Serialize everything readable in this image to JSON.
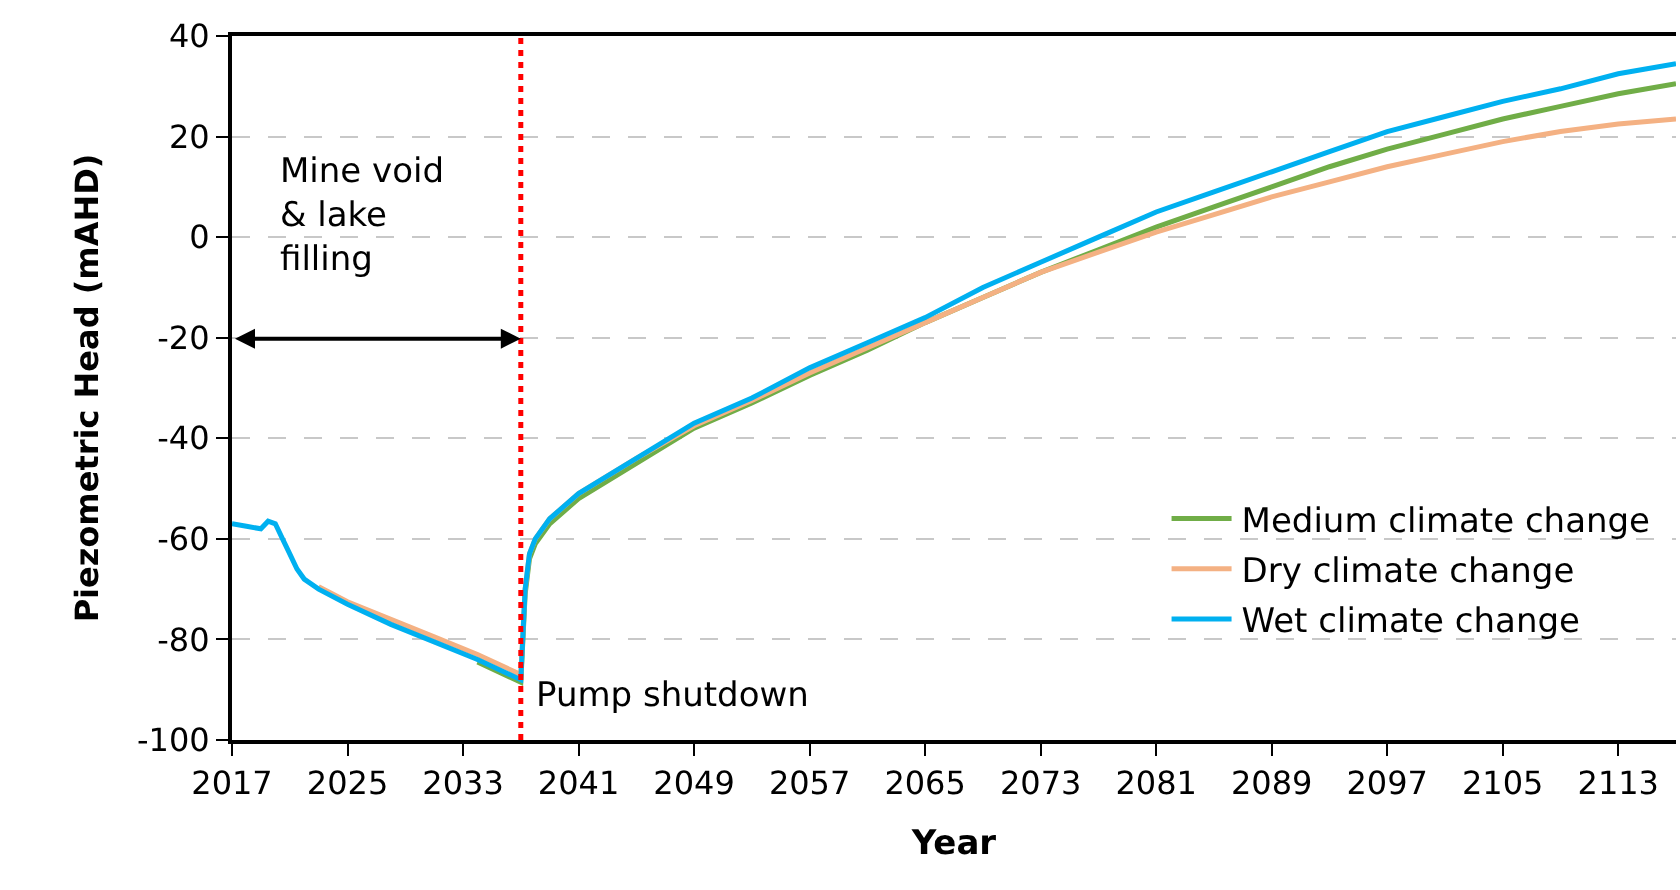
{
  "chart_data": {
    "type": "line",
    "xlabel": "Year",
    "ylabel": "Piezometric Head (mAHD)",
    "xlim": [
      2017,
      2117
    ],
    "xticks": [
      2017,
      2025,
      2033,
      2041,
      2049,
      2057,
      2065,
      2073,
      2081,
      2089,
      2097,
      2105,
      2113
    ],
    "ylim": [
      -100,
      40
    ],
    "yticks": [
      -100,
      -80,
      -60,
      -40,
      -20,
      0,
      20,
      40
    ],
    "grid": "y",
    "legend": "bottom right",
    "marker": "none",
    "line_style": "solid",
    "series": [
      {
        "name": "Medium climate change",
        "color": "#70ad47",
        "x": [
          2034,
          2037,
          2037.3,
          2037.6,
          2038,
          2039,
          2041,
          2045,
          2049,
          2053,
          2057,
          2061,
          2065,
          2069,
          2073,
          2077,
          2081,
          2085,
          2089,
          2093,
          2097,
          2101,
          2105,
          2109,
          2113,
          2117
        ],
        "values": [
          -84.5,
          -88.5,
          -71,
          -64,
          -61,
          -57,
          -52,
          -45,
          -38,
          -33,
          -27.5,
          -22.5,
          -17,
          -12,
          -7,
          -2.5,
          2,
          6,
          10,
          14,
          17.5,
          20.5,
          23.5,
          26,
          28.5,
          30.5
        ]
      },
      {
        "name": "Dry climate change",
        "color": "#f4b183",
        "x": [
          2023,
          2025,
          2028,
          2031,
          2034,
          2037,
          2037.3,
          2037.6,
          2038,
          2039,
          2041,
          2045,
          2049,
          2053,
          2057,
          2061,
          2065,
          2069,
          2073,
          2077,
          2081,
          2085,
          2089,
          2093,
          2097,
          2101,
          2105,
          2109,
          2113,
          2117
        ],
        "values": [
          -69.5,
          -72.5,
          -76,
          -79.5,
          -83,
          -87,
          -70,
          -63,
          -60,
          -56,
          -51,
          -44,
          -37.5,
          -32.5,
          -27,
          -22,
          -17,
          -12,
          -7,
          -3,
          1,
          4.5,
          8,
          11,
          14,
          16.5,
          19,
          21,
          22.5,
          23.5
        ]
      },
      {
        "name": "Wet climate change",
        "color": "#00b0f0",
        "x": [
          2017,
          2018,
          2019,
          2019.5,
          2020,
          2020.5,
          2021,
          2021.5,
          2022,
          2023,
          2025,
          2028,
          2031,
          2034,
          2037,
          2037.3,
          2037.6,
          2038,
          2039,
          2041,
          2045,
          2049,
          2053,
          2057,
          2061,
          2065,
          2069,
          2073,
          2077,
          2081,
          2085,
          2089,
          2093,
          2097,
          2101,
          2105,
          2109,
          2113,
          2117
        ],
        "values": [
          -57,
          -57.5,
          -58,
          -56.5,
          -57,
          -60,
          -63,
          -66,
          -68,
          -70,
          -73,
          -77,
          -80.5,
          -84,
          -88,
          -70,
          -63,
          -60,
          -56,
          -51,
          -44,
          -37,
          -32,
          -26,
          -21,
          -16,
          -10,
          -5,
          0,
          5,
          9,
          13,
          17,
          21,
          24,
          27,
          29.5,
          32.5,
          34.5
        ]
      }
    ],
    "ref_lines": [
      {
        "axis": "x",
        "value": 2037,
        "label": "Pump shutdown",
        "color": "#ff0000",
        "line_style": "dotted"
      }
    ],
    "annotations": [
      "Mine void\n& lake\nfilling"
    ]
  }
}
